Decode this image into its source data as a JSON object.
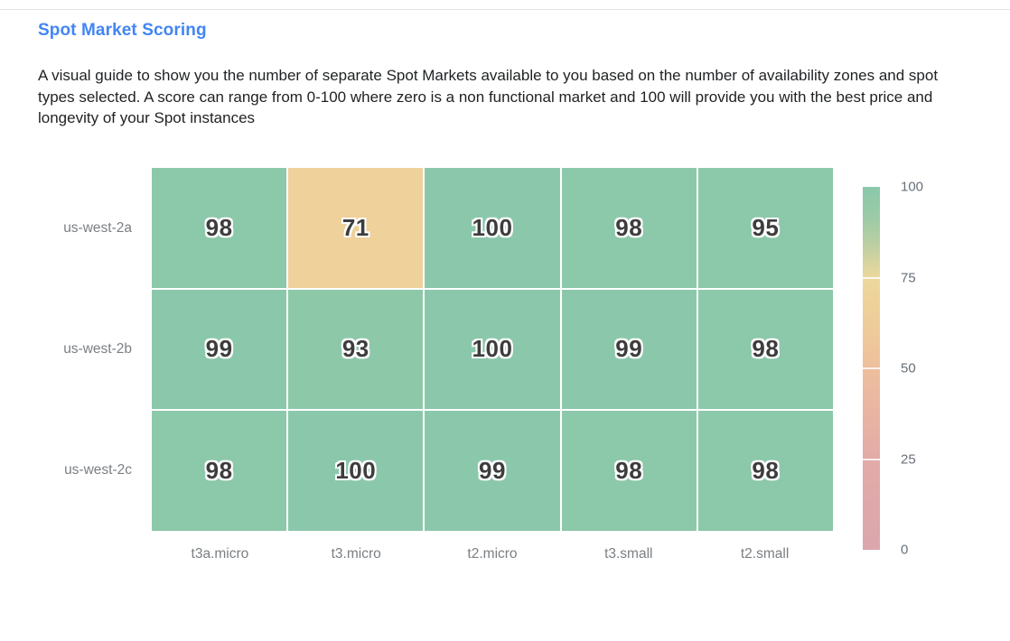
{
  "page": {
    "title": "Spot Market Scoring",
    "description": "A visual guide to show you the number of separate Spot Markets available to you based on the number of availability zones and spot types selected. A score can range from 0-100 where zero is a non functional market and 100 will provide you with the best price and longevity of your Spot instances"
  },
  "colors": {
    "title_accent": "#4285f4",
    "cell_green": "#8bc8ab",
    "cell_tan": "#f0d197",
    "cell_text": "#3d3d3d",
    "axis_label": "#7b7f83"
  },
  "chart_data": {
    "type": "heatmap",
    "title": "Spot Market Scoring",
    "rows": [
      "us-west-2a",
      "us-west-2b",
      "us-west-2c"
    ],
    "columns": [
      "t3a.micro",
      "t3.micro",
      "t2.micro",
      "t3.small",
      "t2.small"
    ],
    "values": [
      [
        98,
        71,
        100,
        98,
        95
      ],
      [
        99,
        93,
        100,
        99,
        98
      ],
      [
        98,
        100,
        99,
        98,
        98
      ]
    ],
    "value_range": [
      0,
      100
    ],
    "colorscale": [
      [
        0,
        "#dca7ac"
      ],
      [
        25,
        "#e3aba7"
      ],
      [
        50,
        "#edbf9e"
      ],
      [
        75,
        "#eed59b"
      ],
      [
        88,
        "#a8cca4"
      ],
      [
        93,
        "#8dc8a9"
      ],
      [
        100,
        "#8bc8ab"
      ]
    ],
    "colorbar": {
      "ticks": [
        100,
        75,
        50,
        25,
        0
      ],
      "gradient_stops": [
        {
          "p": 0,
          "c": "#8bc8ab"
        },
        {
          "p": 8,
          "c": "#9acaa6"
        },
        {
          "p": 16,
          "c": "#bccfa2"
        },
        {
          "p": 23,
          "c": "#e2d69e"
        },
        {
          "p": 25,
          "c": "#ecd89d"
        },
        {
          "p": 33,
          "c": "#eed099"
        },
        {
          "p": 42,
          "c": "#eec89b"
        },
        {
          "p": 50,
          "c": "#edbf9e"
        },
        {
          "p": 62,
          "c": "#e9b4a2"
        },
        {
          "p": 75,
          "c": "#e3aba7"
        },
        {
          "p": 88,
          "c": "#dea8aa"
        },
        {
          "p": 100,
          "c": "#dba7ac"
        }
      ]
    }
  }
}
